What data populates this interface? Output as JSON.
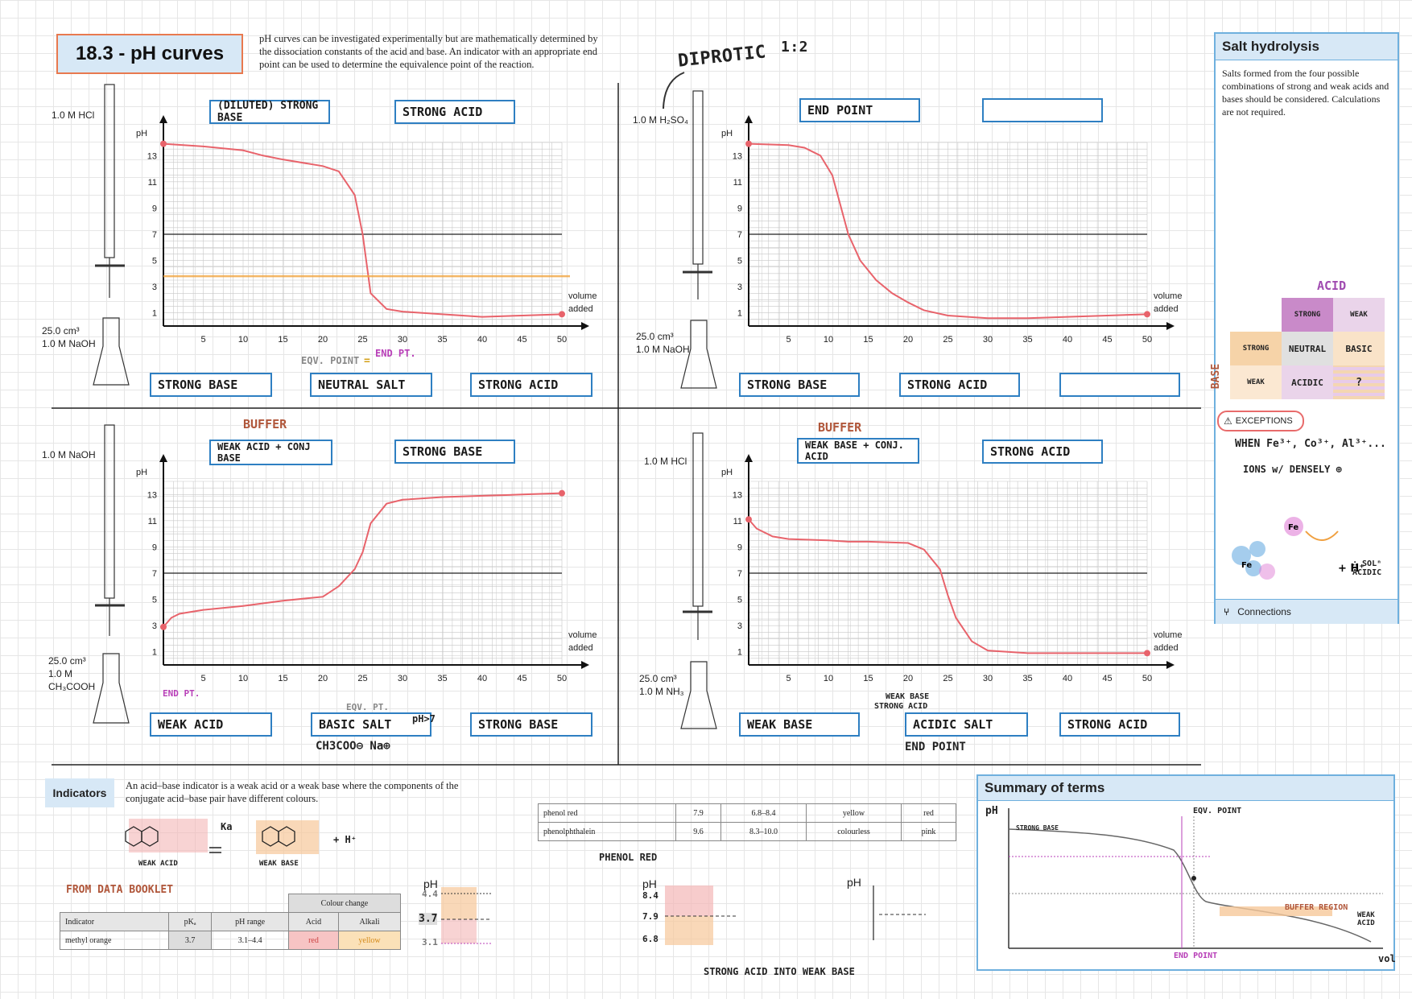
{
  "title": "18.3 - pH curves",
  "intro": "pH curves can be investigated experimentally but are mathematically determined by the dissociation constants of the acid and base. An indicator with an appropriate end point can be used to determine the equivalence point of the reaction.",
  "annotations": {
    "diprotic": "DIPROTIC",
    "ratio": "1:2"
  },
  "graph1": {
    "burette": "1.0 M HCl",
    "flask_line1": "25.0 cm³",
    "flask_line2": "1.0 M NaOH",
    "top_box1": "(DILUTED) STRONG BASE",
    "top_box2": "STRONG ACID",
    "bottom_box1": "STRONG BASE",
    "bottom_box2": "NEUTRAL SALT",
    "bottom_box3": "STRONG ACID",
    "eqv": "EQV. POINT",
    "eq": "=",
    "end": "END PT."
  },
  "graph2": {
    "burette": "1.0 M H₂SO₄",
    "flask_line1": "25.0 cm³",
    "flask_line2": "1.0 M NaOH",
    "top_box1": "END POINT",
    "top_box2": "",
    "bottom_box1": "STRONG BASE",
    "bottom_box2": "STRONG ACID",
    "bottom_box3": ""
  },
  "graph3": {
    "burette": "1.0 M NaOH",
    "flask_line1": "25.0 cm³",
    "flask_line2": "1.0 M",
    "flask_line3": "CH₃COOH",
    "buffer": "BUFFER",
    "top_box1": "WEAK ACID + CONJ BASE",
    "top_box2": "STRONG BASE",
    "bottom_box1": "WEAK ACID",
    "bottom_box2": "BASIC SALT",
    "bottom_box3": "STRONG BASE",
    "end": "END PT.",
    "eqv": "EQV. PT.",
    "ph_note": "pH>7",
    "salt_formula": "CH3COO⊖ Na⊕"
  },
  "graph4": {
    "burette": "1.0 M HCl",
    "flask_line1": "25.0 cm³",
    "flask_line2": "1.0 M NH₃",
    "buffer": "BUFFER",
    "top_box1": "WEAK BASE + CONJ. ACID",
    "top_box2": "STRONG ACID",
    "bottom_box1": "WEAK BASE",
    "bottom_box2": "ACIDIC SALT",
    "bottom_box3": "STRONG ACID",
    "note1": "WEAK BASE",
    "note2": "STRONG ACID",
    "end_point": "END POINT"
  },
  "axes": {
    "ph": "pH",
    "volume": "volume",
    "added": "added",
    "x_ticks": [
      "5",
      "10",
      "15",
      "20",
      "25",
      "30",
      "35",
      "40",
      "45",
      "50"
    ],
    "y_ticks": [
      "13",
      "11",
      "9",
      "7",
      "5",
      "3",
      "1"
    ]
  },
  "chart_data": [
    {
      "type": "line",
      "id": "graph1",
      "x": [
        0,
        5,
        10,
        12.5,
        15,
        20,
        22,
        24,
        25,
        26,
        28,
        30,
        35,
        40,
        45,
        50
      ],
      "y": [
        13.9,
        13.7,
        13.4,
        13,
        12.7,
        12.2,
        11.8,
        10,
        7,
        2.5,
        1.3,
        1.1,
        0.9,
        0.7,
        0.8,
        0.9
      ],
      "xlim": [
        0,
        50
      ],
      "ylim": [
        0,
        14
      ],
      "series": [
        {
          "name": "",
          "values": [
            13.9,
            13.7,
            13.4,
            13,
            12.7,
            12.2,
            11.8,
            10,
            7,
            2.5,
            1.3,
            1.1,
            0.9,
            0.7,
            0.8,
            0.9
          ]
        }
      ],
      "indicator_line_ph": 3.8
    },
    {
      "type": "line",
      "id": "graph2",
      "x": [
        0,
        5,
        7,
        9,
        10.5,
        12.5,
        14,
        16,
        18,
        20,
        22,
        25,
        30,
        35,
        40,
        45,
        50
      ],
      "y": [
        13.9,
        13.8,
        13.6,
        13,
        11.5,
        7,
        5,
        3.5,
        2.5,
        1.8,
        1.2,
        0.8,
        0.6,
        0.6,
        0.7,
        0.8,
        0.9
      ],
      "xlim": [
        0,
        50
      ],
      "ylim": [
        0,
        14
      ]
    },
    {
      "type": "line",
      "id": "graph3",
      "x": [
        0,
        1,
        2,
        5,
        10,
        12.5,
        15,
        20,
        22,
        24,
        25,
        26,
        28,
        30,
        35,
        40,
        45,
        50
      ],
      "y": [
        2.9,
        3.6,
        3.9,
        4.2,
        4.5,
        4.7,
        4.9,
        5.2,
        6,
        7.3,
        8.6,
        10.8,
        12.3,
        12.6,
        12.8,
        12.9,
        13,
        13.1
      ],
      "xlim": [
        0,
        50
      ],
      "ylim": [
        0,
        14
      ]
    },
    {
      "type": "line",
      "id": "graph4",
      "x": [
        0,
        1,
        3,
        5,
        10,
        12.5,
        15,
        20,
        22,
        24,
        25,
        26,
        28,
        30,
        35,
        40,
        45,
        50
      ],
      "y": [
        11.1,
        10.4,
        9.8,
        9.6,
        9.5,
        9.4,
        9.4,
        9.3,
        8.8,
        7.3,
        5.3,
        3.6,
        1.8,
        1.1,
        0.9,
        0.9,
        0.9,
        0.9
      ],
      "xlim": [
        0,
        50
      ],
      "ylim": [
        0,
        14
      ]
    }
  ],
  "sidebar": {
    "title": "Salt hydrolysis",
    "text": "Salts formed from the four possible combinations of strong and weak acids and bases should be considered. Calculations are not required.",
    "acid": "ACID",
    "base": "BASE",
    "col_strong": "STRONG",
    "col_weak": "WEAK",
    "row_strong": "STRONG",
    "row_weak": "WEAK",
    "c11": "NEUTRAL",
    "c12": "BASIC",
    "c21": "ACIDIC",
    "c22": "?",
    "exceptions": "EXCEPTIONS",
    "exc_line1": "WHEN Fe³⁺, Co³⁺, Al³⁺...",
    "exc_line2": "IONS w/ DENSELY ⊕",
    "sol": "∴ SOLⁿ ACIDIC",
    "connections": "Connections"
  },
  "indicators": {
    "label": "Indicators",
    "text": "An acid–base indicator is a weak acid or a weak base where the components of the conjugate acid–base pair have different colours.",
    "weak_acid": "WEAK ACID",
    "weak_base": "WEAK BASE",
    "ka": "Ka",
    "h_plus": "+ H⁺",
    "data_booklet": "FROM DATA BOOKLET",
    "table_header": [
      "Indicator",
      "pKₐ",
      "pH range",
      "Acid",
      "Alkali"
    ],
    "colour_change": "Colour change",
    "rows": [
      {
        "name": "methyl orange",
        "pka": "3.7",
        "range": "3.1–4.4",
        "acid": "red",
        "alkali": "yellow"
      }
    ],
    "rows2": [
      {
        "name": "phenol red",
        "pka": "7.9",
        "range": "6.8–8.4",
        "acid": "yellow",
        "alkali": "red"
      },
      {
        "name": "phenolphthalein",
        "pka": "9.6",
        "range": "8.3–10.0",
        "acid": "colourless",
        "alkali": "pink"
      }
    ],
    "ph": "pH",
    "mo_values": [
      "4.4",
      "3.7",
      "3.1"
    ],
    "phenol_red": "PHENOL RED",
    "pr_values": [
      "8.4",
      "7.9",
      "6.8"
    ],
    "caption": "STRONG ACID INTO WEAK BASE"
  },
  "summary": {
    "title": "Summary of terms",
    "ph": "pH",
    "eqv": "EQV. POINT",
    "strong_base": "STRONG BASE",
    "buffer_region": "BUFFER REGION",
    "weak_acid": "WEAK ACID",
    "end_point": "END POINT",
    "vol": "vol"
  }
}
